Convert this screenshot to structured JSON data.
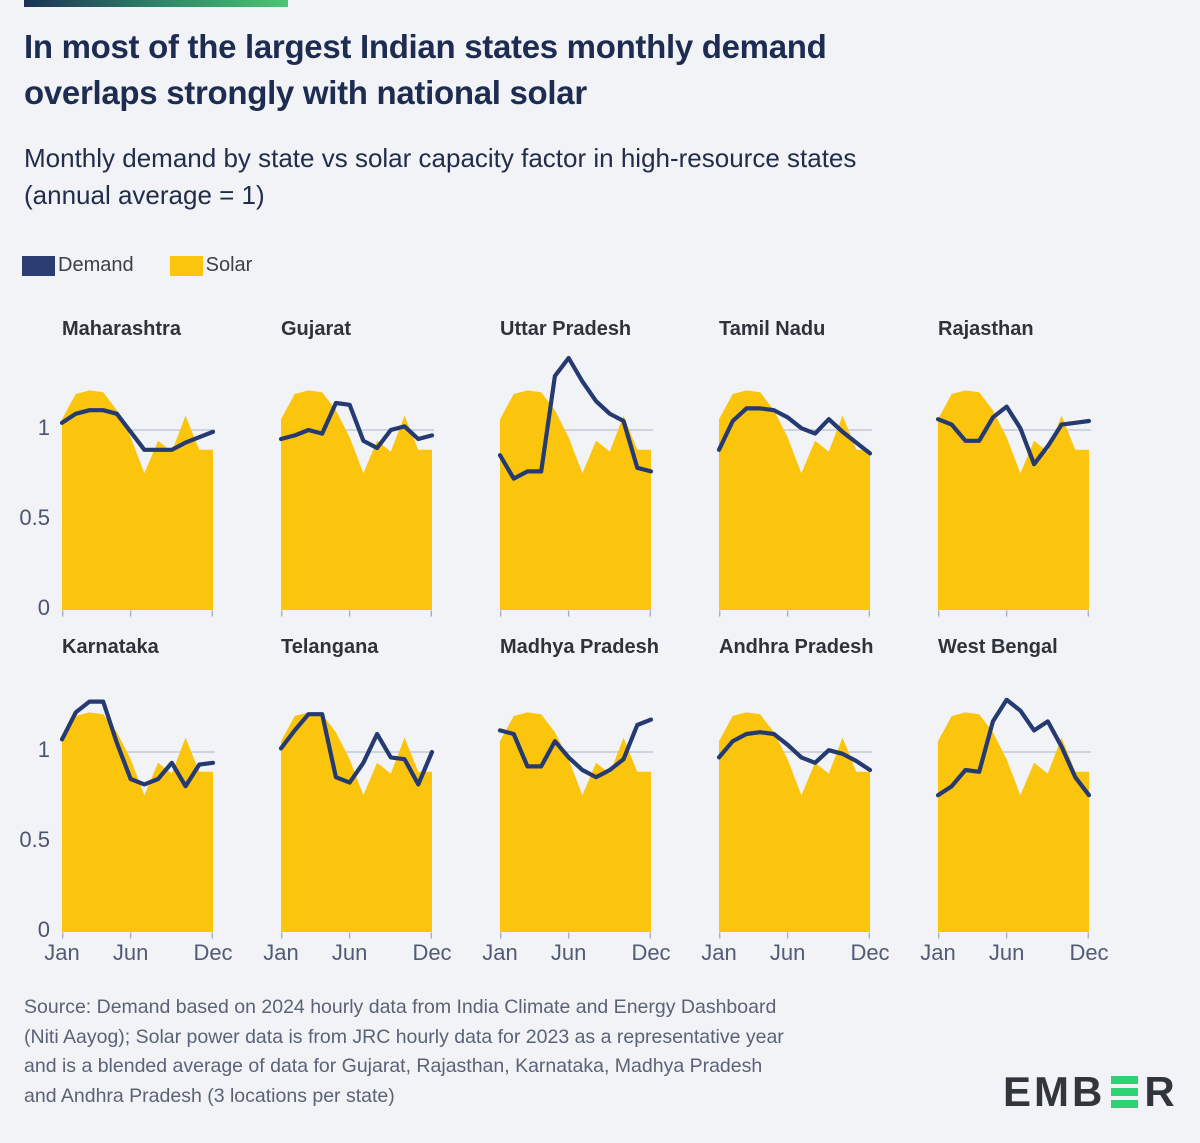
{
  "page": {
    "background": "#f1f3f7"
  },
  "header": {
    "accent_gradient": [
      "#1d3156",
      "#2f8a68",
      "#4fc473"
    ],
    "title": "In most of the largest Indian states monthly demand\noverlaps strongly with national solar",
    "subtitle": "Monthly demand by state vs solar capacity factor in high-resource states\n(annual average = 1)"
  },
  "legend": {
    "items": [
      {
        "label": "Demand",
        "color": "#2b3e74"
      },
      {
        "label": "Solar",
        "color": "#fbc40d"
      }
    ]
  },
  "chart_data": {
    "type": "area+line small multiples",
    "title": "Monthly demand by state vs solar capacity factor in high-resource states (annual average = 1)",
    "months": [
      "Jan",
      "Feb",
      "Mar",
      "Apr",
      "May",
      "Jun",
      "Jul",
      "Aug",
      "Sep",
      "Oct",
      "Nov",
      "Dec"
    ],
    "x_tick_labels": [
      "Jan",
      "Jun",
      "Dec"
    ],
    "y_ticks": [
      1,
      0.5,
      0
    ],
    "y_tick_labels": [
      "1",
      "0.5",
      "0"
    ],
    "ylim": [
      0,
      1.45
    ],
    "gridline_at": 1,
    "grid": "horizontal line at 1 only",
    "colors": {
      "demand": "#243a70",
      "solar": "#fbc40d",
      "gridline": "#b9c0cd",
      "tick": "#a8b0c0"
    },
    "solar": {
      "name": "Solar",
      "values": [
        1.06,
        1.2,
        1.22,
        1.21,
        1.11,
        0.96,
        0.76,
        0.94,
        0.88,
        1.08,
        0.89,
        0.89
      ]
    },
    "states": [
      {
        "name": "Maharashtra",
        "demand": [
          1.04,
          1.09,
          1.11,
          1.11,
          1.09,
          0.99,
          0.89,
          0.89,
          0.89,
          0.93,
          0.96,
          0.99
        ]
      },
      {
        "name": "Gujarat",
        "demand": [
          0.95,
          0.97,
          1.0,
          0.98,
          1.15,
          1.14,
          0.94,
          0.9,
          1.0,
          1.02,
          0.95,
          0.97
        ]
      },
      {
        "name": "Uttar Pradesh",
        "demand": [
          0.86,
          0.73,
          0.77,
          0.77,
          1.3,
          1.4,
          1.27,
          1.16,
          1.09,
          1.05,
          0.79,
          0.77
        ]
      },
      {
        "name": "Tamil Nadu",
        "demand": [
          0.89,
          1.05,
          1.12,
          1.12,
          1.11,
          1.07,
          1.01,
          0.98,
          1.06,
          0.99,
          0.93,
          0.87
        ]
      },
      {
        "name": "Rajasthan",
        "demand": [
          1.06,
          1.03,
          0.94,
          0.94,
          1.07,
          1.13,
          1.01,
          0.81,
          0.91,
          1.03,
          1.04,
          1.05
        ]
      },
      {
        "name": "Karnataka",
        "demand": [
          1.07,
          1.22,
          1.28,
          1.28,
          1.05,
          0.85,
          0.82,
          0.85,
          0.94,
          0.81,
          0.93,
          0.94
        ]
      },
      {
        "name": "Telangana",
        "demand": [
          1.02,
          1.12,
          1.21,
          1.21,
          0.86,
          0.83,
          0.94,
          1.1,
          0.97,
          0.96,
          0.82,
          1.0
        ]
      },
      {
        "name": "Madhya Pradesh",
        "demand": [
          1.12,
          1.1,
          0.92,
          0.92,
          1.06,
          0.97,
          0.9,
          0.86,
          0.9,
          0.96,
          1.15,
          1.18
        ]
      },
      {
        "name": "Andhra Pradesh",
        "demand": [
          0.97,
          1.06,
          1.1,
          1.11,
          1.1,
          1.04,
          0.97,
          0.94,
          1.01,
          0.99,
          0.95,
          0.9
        ]
      },
      {
        "name": "West Bengal",
        "demand": [
          0.76,
          0.81,
          0.9,
          0.89,
          1.17,
          1.29,
          1.23,
          1.12,
          1.17,
          1.03,
          0.86,
          0.76
        ]
      }
    ]
  },
  "source": {
    "text": "Source: Demand based on 2024 hourly data from India Climate and Energy Dashboard\n(Niti Aayog); Solar power data is from JRC hourly data for 2023 as a representative year\nand is a blended average of data for Gujarat, Rajasthan, Karnataka, Madhya Pradesh\nand Andhra Pradesh (3 locations per state)"
  },
  "logo": {
    "prefix": "EMB",
    "suffix": "R",
    "bar_color": "#2ed376",
    "text_color": "#31363d"
  }
}
